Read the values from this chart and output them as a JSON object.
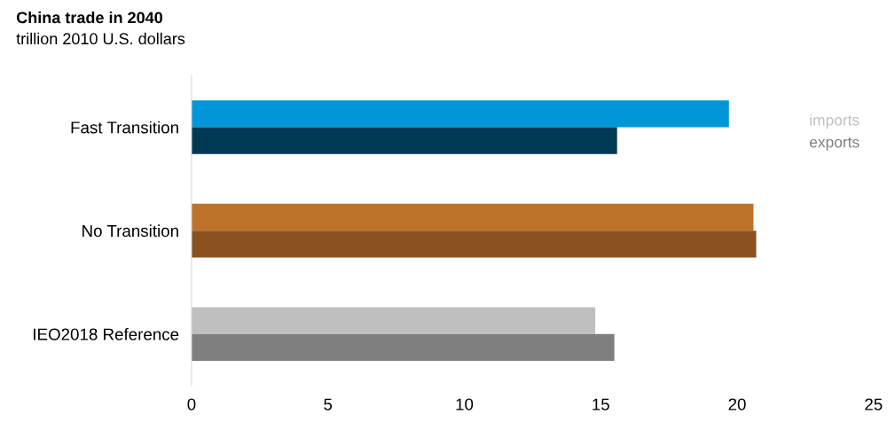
{
  "chart_data": {
    "type": "bar",
    "orientation": "horizontal",
    "title": "China trade in 2040",
    "subtitle": "trillion 2010 U.S. dollars",
    "categories": [
      "Fast Transition",
      "No Transition",
      "IEO2018 Reference"
    ],
    "series": [
      {
        "name": "imports",
        "color": "#bfbfbf",
        "colors": [
          "#0096d7",
          "#bd732a",
          "#bfbfbf"
        ],
        "values": [
          19.7,
          20.6,
          14.8
        ]
      },
      {
        "name": "exports",
        "color": "#7f7f7f",
        "colors": [
          "#003953",
          "#8b5220",
          "#7f7f7f"
        ],
        "values": [
          15.6,
          20.7,
          15.5
        ]
      }
    ],
    "xlim": [
      0,
      25
    ],
    "xticks": [
      0,
      5,
      10,
      15,
      20,
      25
    ],
    "grid": false,
    "legend": "top right"
  }
}
